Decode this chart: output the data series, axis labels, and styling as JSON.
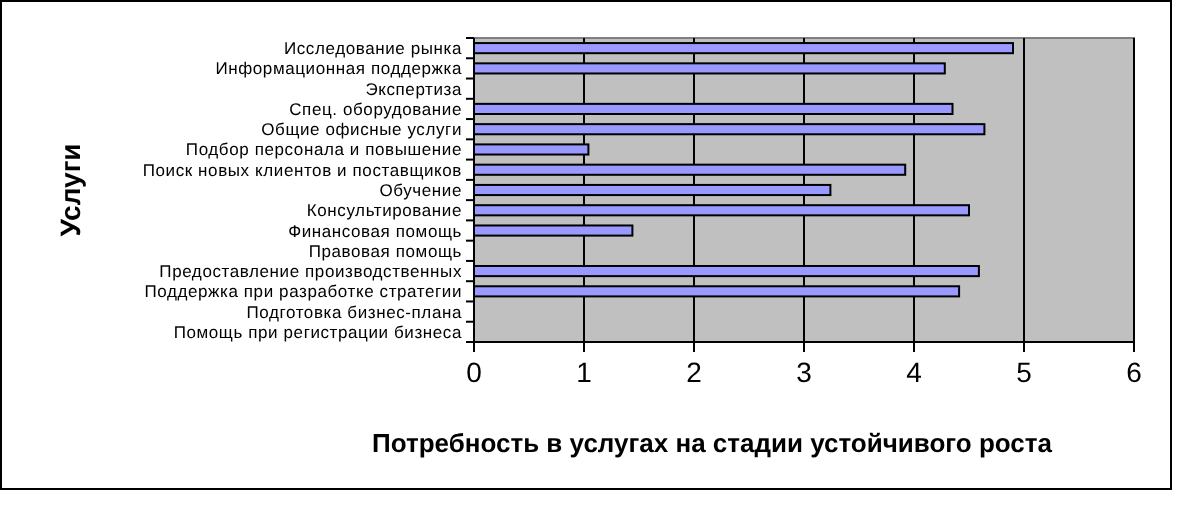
{
  "chart_data": {
    "type": "bar",
    "orientation": "horizontal",
    "xlabel": "Потребность в услугах на стадии устойчивого роста",
    "ylabel": "Услуги",
    "categories": [
      "Исследование рынка",
      "Информационная поддержка",
      "Экспертиза",
      "Спец. оборудование",
      "Общие офисные услуги",
      "Подбор персонала и повышение",
      "Поиск новых клиентов и поставщиков",
      "Обучение",
      "Консультирование",
      "Финансовая помощь",
      "Правовая помощь",
      "Предоставление производственных",
      "Поддержка при разработке стратегии",
      "Подготовка бизнес-плана",
      "Помощь при регистрации бизнеса"
    ],
    "values": [
      4.9,
      4.28,
      0,
      4.35,
      4.64,
      1.04,
      3.92,
      3.24,
      4.5,
      1.44,
      0,
      4.59,
      4.41,
      0,
      0
    ],
    "color": "#9999ff",
    "xlim": [
      0,
      6
    ],
    "xticks": [
      0,
      1,
      2,
      3,
      4,
      5,
      6
    ],
    "grid": "x"
  }
}
